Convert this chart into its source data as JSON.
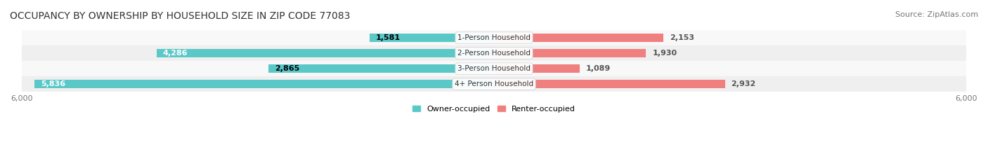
{
  "title": "OCCUPANCY BY OWNERSHIP BY HOUSEHOLD SIZE IN ZIP CODE 77083",
  "source": "Source: ZipAtlas.com",
  "categories": [
    "1-Person Household",
    "2-Person Household",
    "3-Person Household",
    "4+ Person Household"
  ],
  "owner_values": [
    1581,
    4286,
    2865,
    5836
  ],
  "renter_values": [
    2153,
    1930,
    1089,
    2932
  ],
  "owner_color": "#5BC8C8",
  "renter_color": "#F08080",
  "bar_bg_color": "#F0F0F0",
  "axis_max": 6000,
  "bar_height": 0.55,
  "title_fontsize": 10,
  "source_fontsize": 8,
  "label_fontsize": 8,
  "tick_fontsize": 8,
  "legend_fontsize": 8,
  "background_color": "#FFFFFF",
  "row_colors": [
    "#F8F8F8",
    "#EFEFEF",
    "#F8F8F8",
    "#EFEFEF"
  ]
}
